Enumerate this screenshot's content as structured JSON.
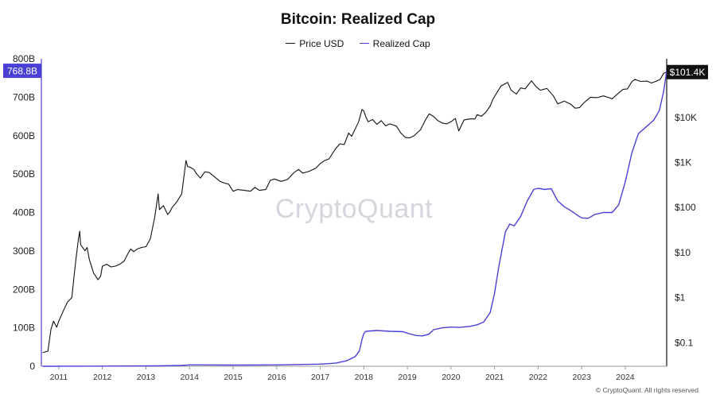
{
  "chart_data": {
    "type": "line",
    "title": "Bitcoin: Realized Cap",
    "watermark": "CryptoQuant",
    "copyright": "© CryptoQuant. All rights reserved",
    "legend": {
      "placement": "top-center"
    },
    "grid": false,
    "x_axis": {
      "ticks": [
        "2011",
        "2012",
        "2013",
        "2014",
        "2015",
        "2016",
        "2017",
        "2018",
        "2019",
        "2020",
        "2021",
        "2022",
        "2023",
        "2024"
      ],
      "range": [
        2010.6,
        2024.95
      ]
    },
    "y_left": {
      "series": "Realized Cap",
      "range": [
        0,
        800
      ],
      "ticks": [
        "0",
        "100B",
        "200B",
        "300B",
        "400B",
        "500B",
        "600B",
        "700B",
        "800B"
      ],
      "current_label": "768.8B",
      "current_value": 768.8
    },
    "y_right": {
      "series": "Price USD",
      "scale": "log",
      "range": [
        0.03,
        200000
      ],
      "ticks": [
        {
          "label": "$0.1",
          "value": 0.1
        },
        {
          "label": "$1",
          "value": 1
        },
        {
          "label": "$10",
          "value": 10
        },
        {
          "label": "$100",
          "value": 100
        },
        {
          "label": "$1K",
          "value": 1000
        },
        {
          "label": "$10K",
          "value": 10000
        }
      ],
      "current_label": "$101.4K",
      "current_value": 101400
    },
    "series": [
      {
        "name": "Price USD",
        "axis": "right",
        "color": "#111111",
        "points": [
          [
            2010.63,
            0.06
          ],
          [
            2010.75,
            0.065
          ],
          [
            2010.82,
            0.2
          ],
          [
            2010.88,
            0.3
          ],
          [
            2010.95,
            0.22
          ],
          [
            2011.0,
            0.3
          ],
          [
            2011.1,
            0.5
          ],
          [
            2011.2,
            0.8
          ],
          [
            2011.3,
            1.0
          ],
          [
            2011.35,
            3
          ],
          [
            2011.4,
            8
          ],
          [
            2011.45,
            20
          ],
          [
            2011.48,
            30
          ],
          [
            2011.5,
            15
          ],
          [
            2011.6,
            11
          ],
          [
            2011.65,
            13
          ],
          [
            2011.7,
            7
          ],
          [
            2011.8,
            3.5
          ],
          [
            2011.9,
            2.5
          ],
          [
            2011.96,
            3
          ],
          [
            2012.0,
            5
          ],
          [
            2012.1,
            5.5
          ],
          [
            2012.2,
            4.8
          ],
          [
            2012.3,
            5
          ],
          [
            2012.4,
            5.5
          ],
          [
            2012.5,
            6.5
          ],
          [
            2012.6,
            10
          ],
          [
            2012.65,
            12
          ],
          [
            2012.72,
            10.5
          ],
          [
            2012.8,
            12
          ],
          [
            2012.9,
            13
          ],
          [
            2013.0,
            13.5
          ],
          [
            2013.1,
            20
          ],
          [
            2013.2,
            60
          ],
          [
            2013.28,
            200
          ],
          [
            2013.31,
            90
          ],
          [
            2013.4,
            110
          ],
          [
            2013.5,
            70
          ],
          [
            2013.55,
            80
          ],
          [
            2013.6,
            100
          ],
          [
            2013.7,
            130
          ],
          [
            2013.82,
            200
          ],
          [
            2013.92,
            1100
          ],
          [
            2013.96,
            800
          ],
          [
            2014.0,
            800
          ],
          [
            2014.1,
            700
          ],
          [
            2014.15,
            580
          ],
          [
            2014.25,
            450
          ],
          [
            2014.35,
            620
          ],
          [
            2014.45,
            600
          ],
          [
            2014.55,
            500
          ],
          [
            2014.7,
            380
          ],
          [
            2014.8,
            350
          ],
          [
            2014.9,
            330
          ],
          [
            2015.0,
            230
          ],
          [
            2015.1,
            250
          ],
          [
            2015.25,
            240
          ],
          [
            2015.4,
            230
          ],
          [
            2015.5,
            280
          ],
          [
            2015.6,
            240
          ],
          [
            2015.75,
            250
          ],
          [
            2015.85,
            400
          ],
          [
            2015.95,
            430
          ],
          [
            2016.1,
            380
          ],
          [
            2016.25,
            420
          ],
          [
            2016.4,
            600
          ],
          [
            2016.5,
            700
          ],
          [
            2016.6,
            580
          ],
          [
            2016.75,
            640
          ],
          [
            2016.9,
            750
          ],
          [
            2017.0,
            950
          ],
          [
            2017.1,
            1100
          ],
          [
            2017.2,
            1200
          ],
          [
            2017.35,
            2000
          ],
          [
            2017.45,
            2600
          ],
          [
            2017.55,
            2500
          ],
          [
            2017.65,
            4500
          ],
          [
            2017.72,
            3800
          ],
          [
            2017.8,
            5500
          ],
          [
            2017.88,
            8000
          ],
          [
            2017.96,
            15000
          ],
          [
            2018.0,
            14000
          ],
          [
            2018.05,
            10000
          ],
          [
            2018.1,
            8000
          ],
          [
            2018.2,
            9000
          ],
          [
            2018.3,
            7000
          ],
          [
            2018.4,
            8500
          ],
          [
            2018.5,
            6500
          ],
          [
            2018.6,
            7200
          ],
          [
            2018.75,
            6400
          ],
          [
            2018.85,
            4500
          ],
          [
            2018.95,
            3600
          ],
          [
            2019.05,
            3500
          ],
          [
            2019.15,
            3900
          ],
          [
            2019.3,
            5300
          ],
          [
            2019.42,
            9000
          ],
          [
            2019.5,
            12000
          ],
          [
            2019.6,
            10500
          ],
          [
            2019.7,
            8500
          ],
          [
            2019.8,
            7500
          ],
          [
            2019.9,
            7200
          ],
          [
            2020.0,
            8000
          ],
          [
            2020.1,
            9500
          ],
          [
            2020.18,
            5000
          ],
          [
            2020.3,
            8800
          ],
          [
            2020.45,
            9300
          ],
          [
            2020.55,
            9200
          ],
          [
            2020.6,
            11500
          ],
          [
            2020.7,
            10600
          ],
          [
            2020.8,
            13000
          ],
          [
            2020.9,
            18000
          ],
          [
            2020.96,
            25000
          ],
          [
            2021.05,
            35000
          ],
          [
            2021.15,
            50000
          ],
          [
            2021.3,
            60000
          ],
          [
            2021.38,
            40000
          ],
          [
            2021.5,
            33000
          ],
          [
            2021.6,
            45000
          ],
          [
            2021.7,
            43000
          ],
          [
            2021.85,
            65000
          ],
          [
            2021.95,
            48000
          ],
          [
            2022.05,
            40000
          ],
          [
            2022.2,
            44000
          ],
          [
            2022.35,
            30000
          ],
          [
            2022.45,
            20000
          ],
          [
            2022.6,
            23000
          ],
          [
            2022.75,
            19500
          ],
          [
            2022.85,
            16000
          ],
          [
            2022.95,
            16500
          ],
          [
            2023.05,
            21000
          ],
          [
            2023.2,
            28000
          ],
          [
            2023.35,
            27500
          ],
          [
            2023.5,
            30000
          ],
          [
            2023.7,
            26000
          ],
          [
            2023.85,
            35000
          ],
          [
            2023.95,
            42000
          ],
          [
            2024.05,
            43000
          ],
          [
            2024.15,
            62000
          ],
          [
            2024.22,
            70000
          ],
          [
            2024.35,
            63000
          ],
          [
            2024.5,
            64000
          ],
          [
            2024.6,
            58000
          ],
          [
            2024.7,
            63000
          ],
          [
            2024.8,
            70000
          ],
          [
            2024.88,
            95000
          ],
          [
            2024.95,
            101400
          ]
        ]
      },
      {
        "name": "Realized Cap",
        "axis": "left",
        "color": "#4b40d6",
        "points": [
          [
            2010.63,
            0.0
          ],
          [
            2011.5,
            0.2
          ],
          [
            2012.5,
            0.6
          ],
          [
            2013.3,
            1.0
          ],
          [
            2013.8,
            2.0
          ],
          [
            2014.0,
            3.5
          ],
          [
            2015.0,
            3.2
          ],
          [
            2016.0,
            3.6
          ],
          [
            2017.0,
            5.5
          ],
          [
            2017.35,
            8
          ],
          [
            2017.6,
            14
          ],
          [
            2017.8,
            25
          ],
          [
            2017.9,
            40
          ],
          [
            2017.96,
            70
          ],
          [
            2018.0,
            85
          ],
          [
            2018.05,
            91
          ],
          [
            2018.3,
            93
          ],
          [
            2018.6,
            91
          ],
          [
            2018.9,
            90
          ],
          [
            2019.0,
            86
          ],
          [
            2019.2,
            80
          ],
          [
            2019.35,
            79
          ],
          [
            2019.5,
            84
          ],
          [
            2019.6,
            95
          ],
          [
            2019.8,
            100
          ],
          [
            2020.0,
            102
          ],
          [
            2020.2,
            101
          ],
          [
            2020.45,
            104
          ],
          [
            2020.6,
            108
          ],
          [
            2020.75,
            115
          ],
          [
            2020.9,
            140
          ],
          [
            2021.0,
            190
          ],
          [
            2021.1,
            260
          ],
          [
            2021.25,
            350
          ],
          [
            2021.35,
            370
          ],
          [
            2021.45,
            365
          ],
          [
            2021.6,
            390
          ],
          [
            2021.75,
            430
          ],
          [
            2021.9,
            460
          ],
          [
            2022.0,
            463
          ],
          [
            2022.15,
            460
          ],
          [
            2022.3,
            462
          ],
          [
            2022.45,
            430
          ],
          [
            2022.6,
            415
          ],
          [
            2022.75,
            405
          ],
          [
            2022.9,
            393
          ],
          [
            2023.0,
            386
          ],
          [
            2023.15,
            385
          ],
          [
            2023.3,
            395
          ],
          [
            2023.5,
            400
          ],
          [
            2023.7,
            400
          ],
          [
            2023.85,
            420
          ],
          [
            2024.0,
            480
          ],
          [
            2024.15,
            555
          ],
          [
            2024.3,
            605
          ],
          [
            2024.5,
            625
          ],
          [
            2024.65,
            640
          ],
          [
            2024.78,
            665
          ],
          [
            2024.88,
            715
          ],
          [
            2024.95,
            768.8
          ]
        ]
      }
    ]
  }
}
